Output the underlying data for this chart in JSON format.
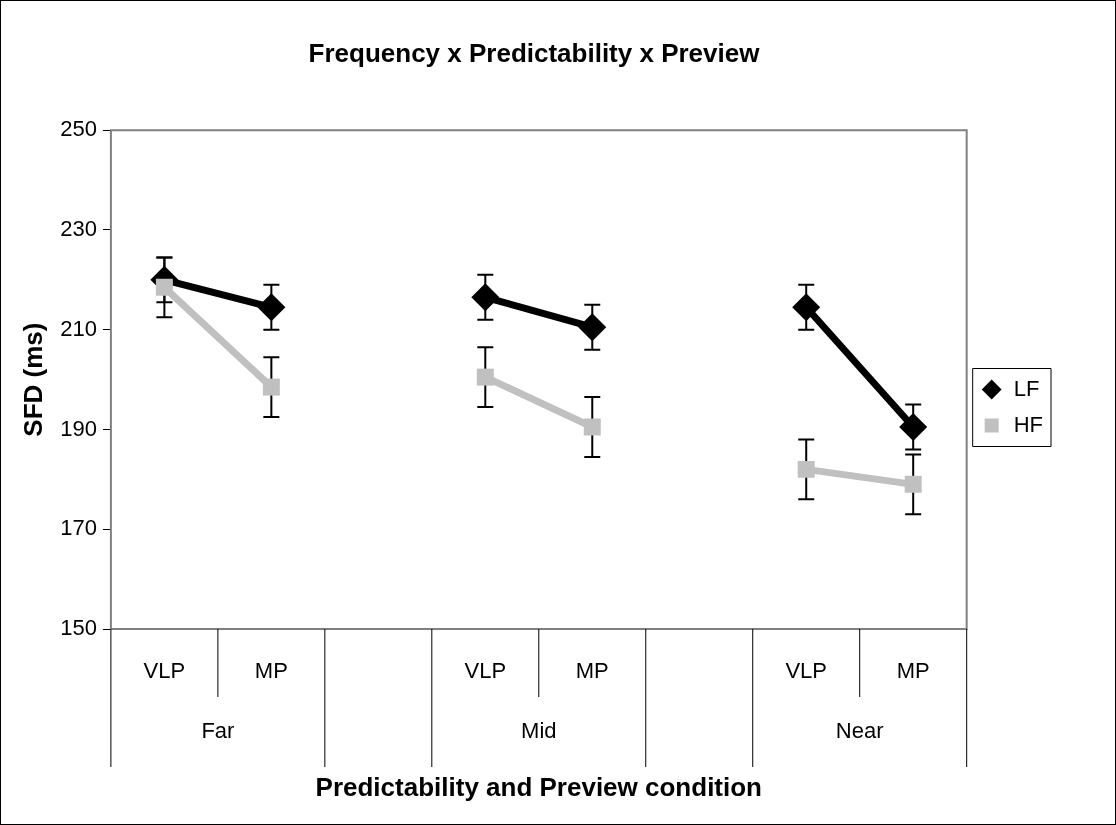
{
  "chart_data": {
    "type": "line",
    "title": "Frequency x Predictability x Preview",
    "xlabel": "Predictability and Preview condition",
    "ylabel": "SFD (ms)",
    "categories": [
      "VLP",
      "MP",
      null,
      "VLP",
      "MP",
      null,
      "VLP",
      "MP"
    ],
    "series": [
      {
        "name": "LF",
        "color": "#000000",
        "marker": "diamond",
        "values": [
          220,
          214.5,
          null,
          216.5,
          210.5,
          null,
          214.5,
          190.5
        ],
        "errors": [
          4.5,
          4.5,
          null,
          4.5,
          4.5,
          null,
          4.5,
          4.5
        ]
      },
      {
        "name": "HF",
        "color": "#c0c0c0",
        "marker": "square",
        "values": [
          218.5,
          198.5,
          null,
          200.5,
          190.5,
          null,
          182,
          179
        ],
        "errors": [
          6,
          6,
          null,
          6,
          6,
          null,
          6,
          6
        ]
      }
    ],
    "ylim": [
      150,
      250
    ],
    "yticks": [
      150,
      170,
      190,
      210,
      230,
      250
    ],
    "grid": false,
    "legend": "right",
    "line_style": "solid",
    "annotations": [
      "Far",
      "Mid",
      "Near"
    ]
  }
}
